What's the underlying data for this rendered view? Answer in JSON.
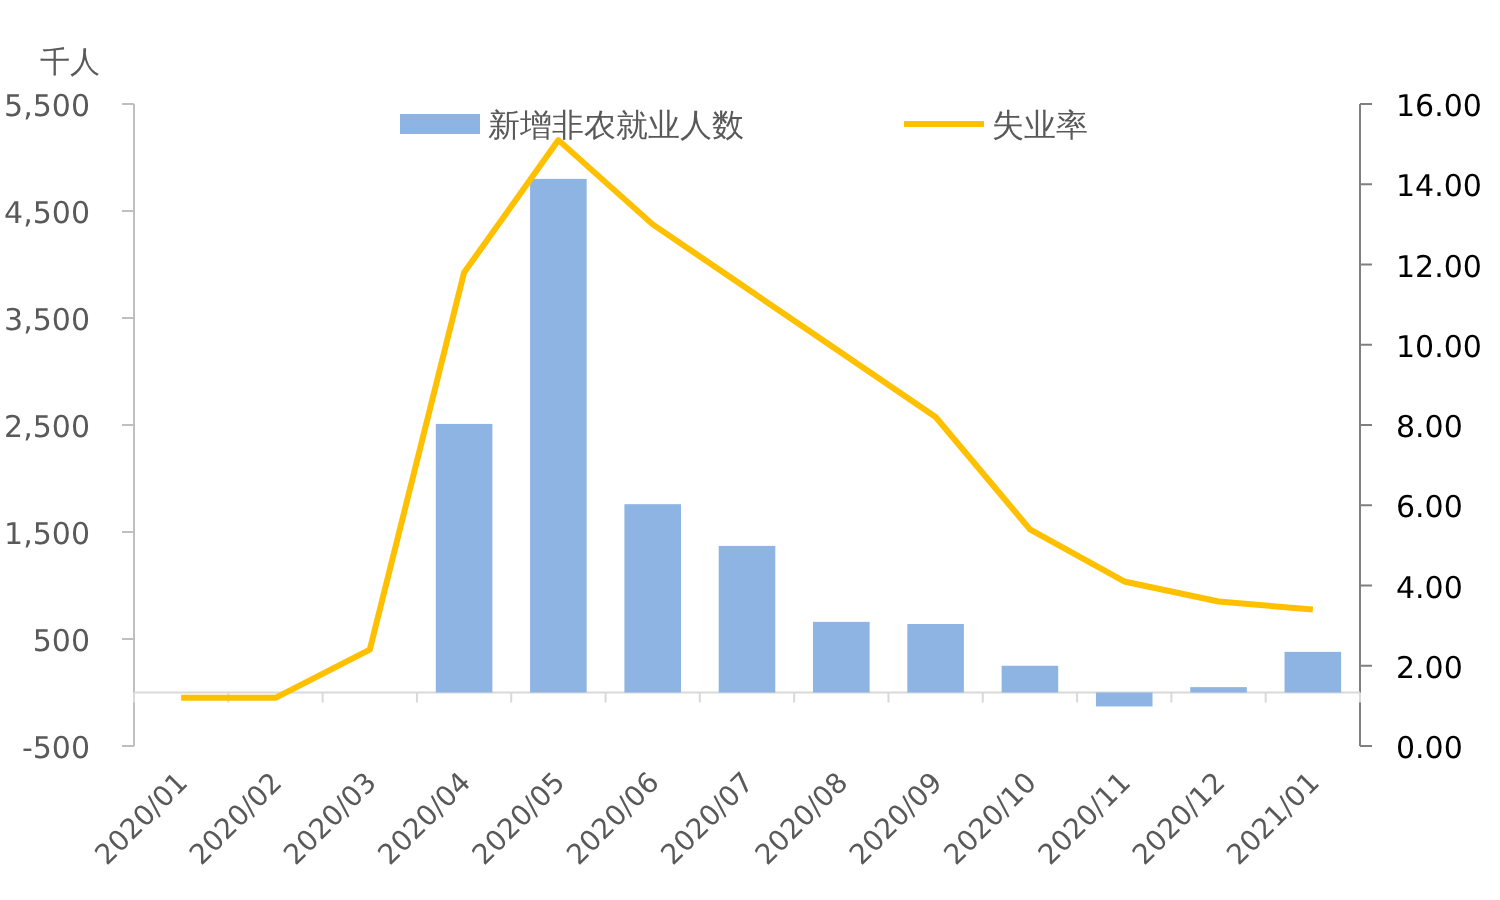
{
  "chart_data": {
    "type": "bar",
    "ylabel": "千人",
    "categories": [
      "2020/01",
      "2020/02",
      "2020/03",
      "2020/04",
      "2020/05",
      "2020/06",
      "2020/07",
      "2020/08",
      "2020/09",
      "2020/10",
      "2020/11",
      "2020/12",
      "2021/01"
    ],
    "series": [
      {
        "name": "新增非农就业人数",
        "color": "#8eb4e3",
        "values": [
          null,
          null,
          null,
          2510,
          4800,
          1760,
          1370,
          660,
          640,
          250,
          -130,
          50,
          380
        ]
      },
      {
        "name": "失业率",
        "type": "line",
        "axis": "y2",
        "color": "#ffc000",
        "values": [
          1.2,
          1.2,
          2.4,
          11.8,
          15.1,
          13.0,
          11.4,
          9.8,
          8.2,
          5.4,
          4.1,
          3.6,
          3.4
        ]
      }
    ],
    "ylim": [
      -500,
      5500
    ],
    "yticks": [
      {
        "value": -500,
        "label": "-500"
      },
      500,
      {
        "value": 1500,
        "label": "1,500"
      },
      {
        "value": 2500,
        "label": "2,500"
      },
      {
        "value": 3500,
        "label": "3,500"
      },
      {
        "value": 4500,
        "label": "4,500"
      },
      {
        "value": 5500,
        "label": "5,500"
      }
    ],
    "y2lim": [
      0,
      16
    ],
    "y2ticks": [
      {
        "value": 0,
        "label": "0.00"
      },
      {
        "value": 2,
        "label": "2.00"
      },
      {
        "value": 4,
        "label": "4.00"
      },
      {
        "value": 6,
        "label": "6.00"
      },
      {
        "value": 8,
        "label": "8.00"
      },
      {
        "value": 10,
        "label": "10.00"
      },
      {
        "value": 12,
        "label": "12.00"
      },
      {
        "value": 14,
        "label": "14.00"
      },
      {
        "value": 16,
        "label": "16.00"
      }
    ],
    "legend": "top"
  }
}
